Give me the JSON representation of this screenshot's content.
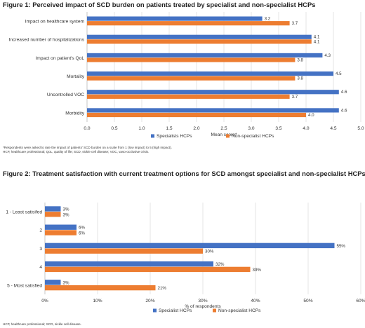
{
  "figure1": {
    "title": "Figure 1: Perceived impact of SCD burden on patients treated by specialist and non-specialist HCPs",
    "footnote_1": "*Respondents were asked to rate the impact of patients' SCD burden on a scale from 1 (low impact) to 5 (high impact).",
    "footnote_2": "HCP, healthcare professional; QoL, quality of life; SCD, sickle cell disease; VOC, vaso-occlusive crisis."
  },
  "figure2": {
    "title": "Figure 2: Treatment satisfaction with current treatment options for SCD amongst specialist and non-specialist HCPs",
    "footnote": "HCP, healthcare professional; SCD, sickle cell disease."
  },
  "colors": {
    "specialist": "#4472C4",
    "non_specialist": "#ED7D31",
    "grid": "#D9D9D9"
  },
  "chart_data": [
    {
      "type": "bar",
      "orientation": "horizontal",
      "categories": [
        "Impact on healthcare system",
        "Increased number of hospitalizations",
        "Impact on patient's QoL",
        "Mortality",
        "Uncontrolled VOC",
        "Morbidity"
      ],
      "series": [
        {
          "name": "Specialists HCPs",
          "values": [
            3.2,
            4.1,
            4.3,
            4.5,
            4.6,
            4.6
          ],
          "labels": [
            "3.2",
            "4.1",
            "4.3",
            "4.5",
            "4.6",
            "4.6"
          ]
        },
        {
          "name": "Non-specialist HCPs",
          "values": [
            3.7,
            4.1,
            3.8,
            3.8,
            3.7,
            4.0
          ],
          "labels": [
            "3.7",
            "4.1",
            "3.8",
            "3.8",
            "3.7",
            "4.0"
          ]
        }
      ],
      "xlabel": "Mean score*",
      "xlim": [
        0,
        5
      ],
      "xticks": [
        "0.0",
        "0.5",
        "1.0",
        "1.5",
        "2.0",
        "2.5",
        "3.0",
        "3.5",
        "4.0",
        "4.5",
        "5.0"
      ],
      "grid": true,
      "legend_position": "bottom"
    },
    {
      "type": "bar",
      "orientation": "horizontal",
      "categories": [
        "1 - Least satisifed",
        "2",
        "3",
        "4",
        "5 - Most satisfied"
      ],
      "series": [
        {
          "name": "Specialist HCPs",
          "values": [
            3,
            6,
            55,
            32,
            3
          ],
          "labels": [
            "3%",
            "6%",
            "55%",
            "32%",
            "3%"
          ]
        },
        {
          "name": "Non-specialist HCPs",
          "values": [
            3,
            6,
            30,
            39,
            21
          ],
          "labels": [
            "3%",
            "6%",
            "30%",
            "39%",
            "21%"
          ]
        }
      ],
      "xlabel": "% of respondents",
      "xlim": [
        0,
        60
      ],
      "xticks": [
        "0%",
        "10%",
        "20%",
        "30%",
        "40%",
        "50%",
        "60%"
      ],
      "grid": true,
      "legend_position": "bottom"
    }
  ]
}
